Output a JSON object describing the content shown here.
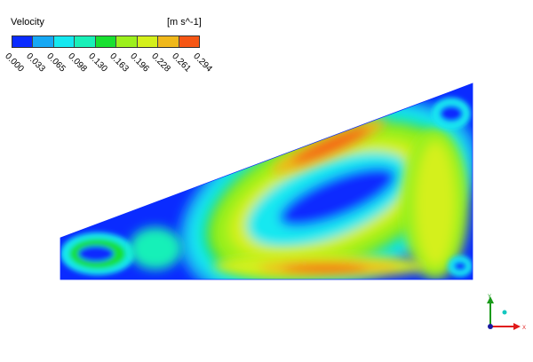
{
  "legend": {
    "title": "Velocity",
    "unit": "[m s^-1]",
    "ticks": [
      "0.000",
      "0.033",
      "0.065",
      "0.098",
      "0.130",
      "0.163",
      "0.196",
      "0.228",
      "0.261",
      "0.294"
    ],
    "colors": [
      "#0a2bff",
      "#16a8f4",
      "#14e8f0",
      "#18f0b8",
      "#18e030",
      "#9cf01c",
      "#d4f01a",
      "#f0b81a",
      "#f55614"
    ]
  },
  "axes": {
    "y_label": "Y",
    "x_label": "X"
  }
}
